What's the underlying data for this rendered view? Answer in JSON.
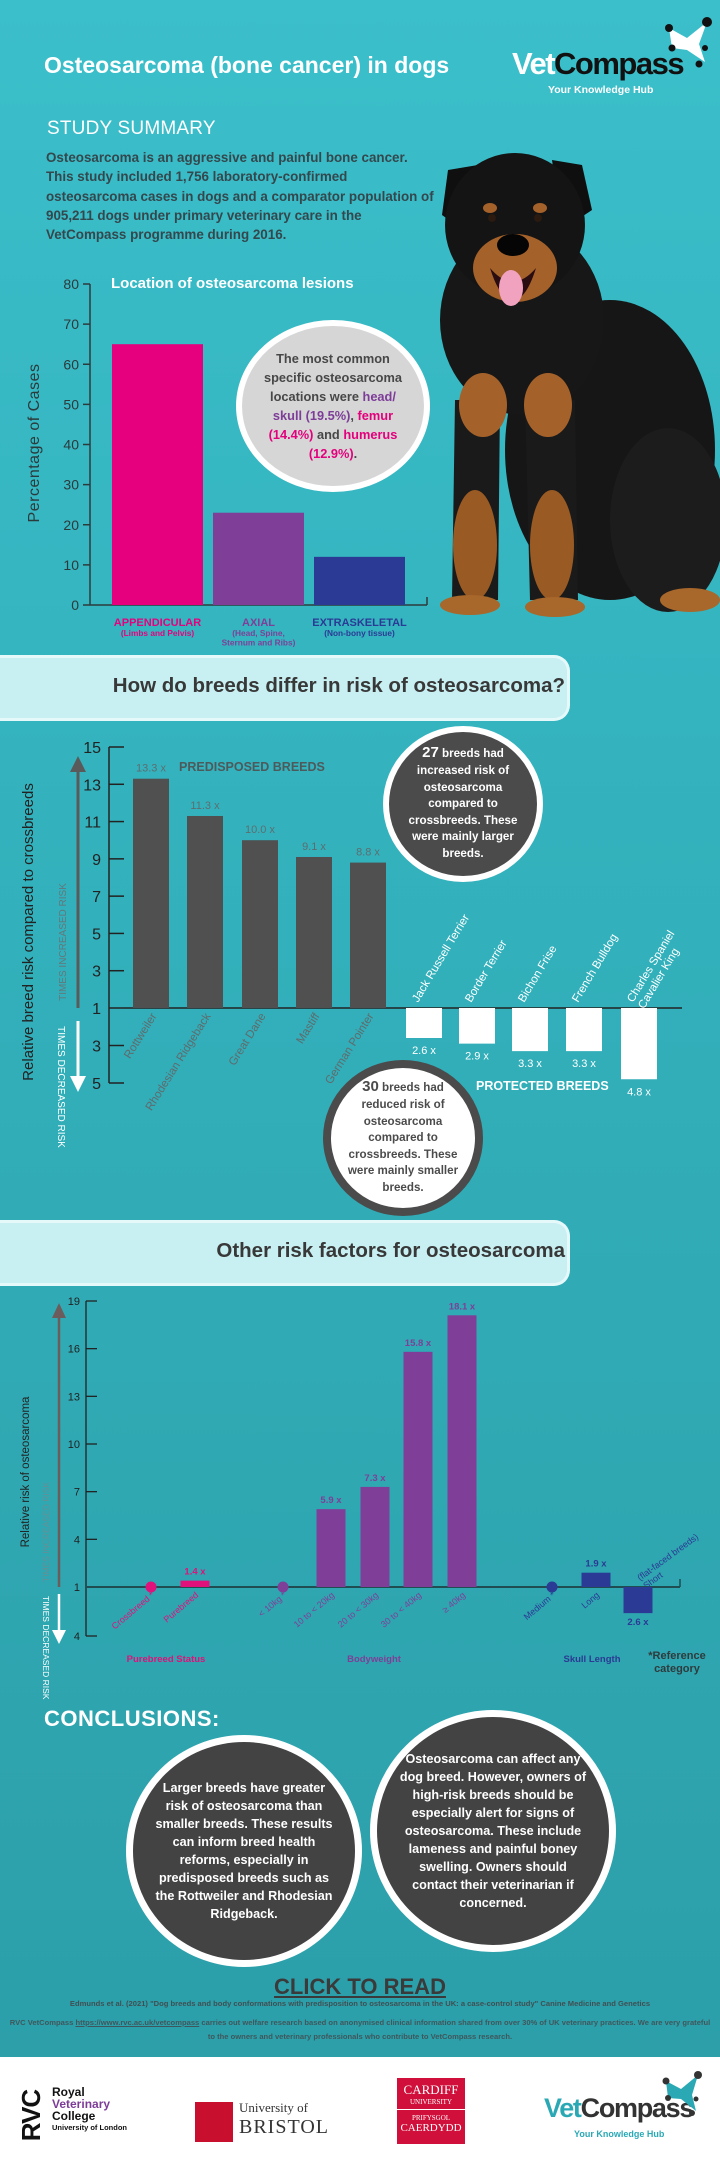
{
  "header": {
    "title": "Osteosarcoma (bone cancer) in dogs",
    "logo": {
      "word_a": "Vet",
      "word_b": "Compass",
      "tagline": "Your Knowledge Hub"
    }
  },
  "summary": {
    "heading": "STUDY SUMMARY",
    "text": "Osteosarcoma is an aggressive and painful bone cancer. This study included 1,756 laboratory-confirmed osteosarcoma cases in dogs and a comparator population of 905,211 dogs under primary veterinary care in the VetCompass programme during 2016."
  },
  "location_callout": {
    "t1": "The most common specific osteosarcoma locations were ",
    "t2": "head/ skull (19.5%)",
    "t3": ", ",
    "t4": "femur (14.4%)",
    "t5": " and ",
    "t6": "humerus (12.9%)",
    "t7": "."
  },
  "sections": {
    "breeds_title": "How do breeds differ in risk of osteosarcoma?",
    "other_title": "Other risk factors for osteosarcoma"
  },
  "breed_callouts": {
    "increased_count": "27",
    "increased_text": " breeds had increased risk of osteosarcoma compared to crossbreeds. These were mainly larger breeds.",
    "reduced_count": "30",
    "reduced_text": " breeds had reduced risk of osteosarcoma compared to crossbreeds. These were mainly smaller breeds."
  },
  "chart_data": [
    {
      "type": "bar",
      "title": "Location of osteosarcoma lesions",
      "ylabel": "Percentage of Cases",
      "ylim": [
        0,
        80
      ],
      "yticks": [
        0,
        10,
        20,
        30,
        40,
        50,
        60,
        70,
        80
      ],
      "grid": false,
      "categories": [
        {
          "label": "APPENDICULAR",
          "sub": [
            "(Limbs and Pelvis)"
          ],
          "value": 65,
          "color": "#e6007e"
        },
        {
          "label": "AXIAL",
          "sub": [
            "(Head, Spine,",
            "Sternum and Ribs)"
          ],
          "value": 23,
          "color": "#7f3f98"
        },
        {
          "label": "EXTRASKELETAL",
          "sub": [
            "(Non-bony tissue)"
          ],
          "value": 12,
          "color": "#2b3a94"
        }
      ]
    },
    {
      "type": "bar",
      "ylabel": "Relative breed risk compared to crossbreeds",
      "up_label": "TIMES INCREASED RISK",
      "down_label": "TIMES DECREASED RISK",
      "yticks_up": [
        15,
        13,
        11,
        9,
        7,
        5,
        3,
        1
      ],
      "yticks_down": [
        3,
        5
      ],
      "ylim_up": [
        1,
        15
      ],
      "ylim_down": [
        1,
        5
      ],
      "predisposed_label": "PREDISPOSED BREEDS",
      "protected_label": "PROTECTED BREEDS",
      "predisposed": [
        {
          "name": [
            "Rottweiler"
          ],
          "value": 13.3,
          "label": "13.3 x"
        },
        {
          "name": [
            "Rhodesian Ridgeback"
          ],
          "value": 11.3,
          "label": "11.3 x"
        },
        {
          "name": [
            "Great Dane"
          ],
          "value": 10.0,
          "label": "10.0 x"
        },
        {
          "name": [
            "Mastiff"
          ],
          "value": 9.1,
          "label": "9.1 x"
        },
        {
          "name": [
            "German Pointer"
          ],
          "value": 8.8,
          "label": "8.8 x"
        }
      ],
      "protected": [
        {
          "name": [
            "Jack Russell Terrier"
          ],
          "value": 2.6,
          "label": "2.6 x"
        },
        {
          "name": [
            "Border Terrier"
          ],
          "value": 2.9,
          "label": "2.9 x"
        },
        {
          "name": [
            "Bichon Frise"
          ],
          "value": 3.3,
          "label": "3.3 x"
        },
        {
          "name": [
            "French Bulldog"
          ],
          "value": 3.3,
          "label": "3.3 x"
        },
        {
          "name": [
            "Cavalier King",
            "Charles Spaniel"
          ],
          "value": 4.8,
          "label": "4.8 x"
        }
      ],
      "colors": {
        "predisposed": "#505050",
        "protected": "#ffffff"
      }
    },
    {
      "type": "bar",
      "ylabel": "Relative risk of osteosarcoma",
      "up_label": "TIMES INCREASED RISK",
      "down_label": "TIMES DECREASED RISK",
      "yticks_up": [
        19,
        16,
        13,
        10,
        7,
        4,
        1
      ],
      "yticks_down": [
        4
      ],
      "ylim_up": [
        1,
        19
      ],
      "ylim_down": [
        1,
        4
      ],
      "reference_note": "*Reference category",
      "groups": [
        {
          "name": "Purebreed Status",
          "color": "#e0117a",
          "items": [
            {
              "name": [
                "Crossbreed *"
              ],
              "value": 1,
              "reference": true
            },
            {
              "name": [
                "Purebreed"
              ],
              "value": 1.4,
              "label": "1.4 x",
              "direction": "increased"
            }
          ]
        },
        {
          "name": "Bodyweight",
          "color": "#7f3f98",
          "items": [
            {
              "name": [
                "< 10kg *"
              ],
              "value": 1,
              "reference": true
            },
            {
              "name": [
                "10 to < 20kg"
              ],
              "value": 5.9,
              "label": "5.9 x",
              "direction": "increased"
            },
            {
              "name": [
                "20 to < 30kg"
              ],
              "value": 7.3,
              "label": "7.3 x",
              "direction": "increased"
            },
            {
              "name": [
                "30 to < 40kg"
              ],
              "value": 15.8,
              "label": "15.8 x",
              "direction": "increased"
            },
            {
              "name": [
                "≥ 40kg"
              ],
              "value": 18.1,
              "label": "18.1 x",
              "direction": "increased"
            }
          ]
        },
        {
          "name": "Skull Length",
          "color": "#2b3a94",
          "items": [
            {
              "name": [
                "Medium *"
              ],
              "value": 1,
              "reference": true
            },
            {
              "name": [
                "Long"
              ],
              "value": 1.9,
              "label": "1.9 x",
              "direction": "increased"
            },
            {
              "name": [
                "Short",
                "(flat-faced breeds)"
              ],
              "value": 2.6,
              "label": "2.6 x",
              "direction": "decreased"
            }
          ]
        }
      ]
    }
  ],
  "conclusions": {
    "heading": "CONCLUSIONS:",
    "left": "Larger breeds have greater risk of osteosarcoma than smaller breeds. These results can inform breed health reforms, especially in predisposed breeds such as the Rottweiler and Rhodesian Ridgeback.",
    "right": "Osteosarcoma can affect any dog breed. However, owners of high-risk breeds should be especially alert for signs of osteosarcoma. These include lameness and painful boney swelling. Owners should contact their veterinarian if concerned."
  },
  "footer": {
    "click_to_read": "CLICK TO READ",
    "citation": "Edmunds et al. (2021) \"Dog breeds and body conformations with predisposition to osteosarcoma in the UK: a case-control study\" Canine Medicine and Genetics",
    "rvc_prefix": "RVC VetCompass ",
    "rvc_url": "https://www.rvc.ac.uk/vetcompass",
    "rvc_text": " carries out welfare research based on anonymised clinical information shared from over 30% of UK veterinary practices. We are very grateful to the owners and veterinary professionals who contribute to VetCompass research."
  },
  "logos": {
    "rvc": {
      "mark": "RVC",
      "l1": "Royal",
      "l2": "Veterinary",
      "l3": "College",
      "l4": "University of London"
    },
    "bristol": {
      "l1": "University of",
      "l2": "BRISTOL"
    },
    "cardiff": {
      "l1": "CARDIFF",
      "l2": "UNIVERSITY",
      "l3": "PRIFYSGOL",
      "l4": "CAERDYDD"
    },
    "vetcompass": {
      "word_a": "Vet",
      "word_b": "Compass",
      "tagline": "Your Knowledge Hub"
    }
  },
  "colors": {
    "background": "#33b2bd",
    "pink": "#e6007e",
    "purple": "#7f3f98",
    "blue": "#2b3a94",
    "dark_grey": "#4b4b4b",
    "banner": "#c8eff2"
  }
}
